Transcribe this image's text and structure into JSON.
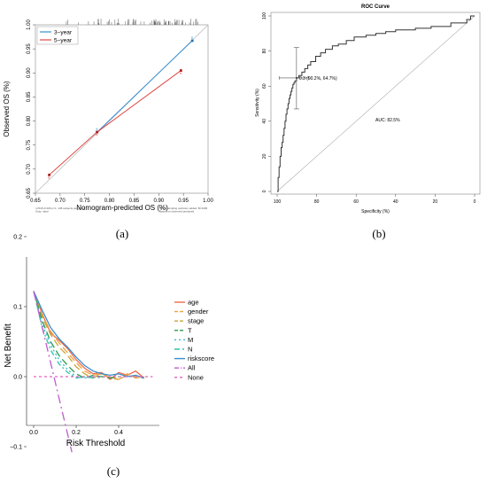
{
  "panel_labels": [
    "(a)",
    "(b)",
    "(c)"
  ],
  "chart_data": [
    {
      "type": "line",
      "panel": "a",
      "xlabel": "Nomogram-predicted OS (%)",
      "ylabel": "Observed OS (%)",
      "xlim": [
        0.65,
        1.0
      ],
      "ylim": [
        0.65,
        1.0
      ],
      "xticks": [
        "0.65",
        "0.70",
        "0.75",
        "0.80",
        "0.85",
        "0.90",
        "0.95",
        "1.00"
      ],
      "yticks": [
        "0.65",
        "0.70",
        "0.75",
        "0.80",
        "0.85",
        "0.90",
        "0.95",
        "1.00"
      ],
      "legend_position": "top-left",
      "series": [
        {
          "name": "3−year",
          "color": "#3a8fcf",
          "x": [
            0.775,
            0.968
          ],
          "y": [
            0.777,
            0.967
          ]
        },
        {
          "name": "5−year",
          "color": "#e04848",
          "x": [
            0.678,
            0.775,
            0.945
          ],
          "y": [
            0.688,
            0.777,
            0.905
          ]
        }
      ],
      "ideal_line": true,
      "rug_top": true,
      "footnote_left": "n=518 d=106 p=1, 138 subjects per group\nGray: ideal",
      "footnote_right": "X − resampling optimism added, B=1000\nBased on observed-predicted"
    },
    {
      "type": "line",
      "panel": "b",
      "title": "ROC Curve",
      "xlabel": "Specificity (%)",
      "ylabel": "Sensitivity (%)",
      "xlim": [
        100,
        0
      ],
      "ylim": [
        0,
        100
      ],
      "xticks": [
        "100",
        "80",
        "60",
        "40",
        "20",
        "0"
      ],
      "yticks": [
        "0",
        "20",
        "40",
        "60",
        "80",
        "100"
      ],
      "annotations": [
        "0.3 (90.2%, 64.7%)",
        "AUC: 82.5%"
      ],
      "series": [
        {
          "name": "ROC",
          "color": "#333333",
          "specificity": [
            100,
            99.5,
            99.5,
            99,
            99,
            98.5,
            98.5,
            98,
            98,
            97.5,
            97.5,
            97,
            97,
            96.5,
            96.5,
            96,
            96,
            95.5,
            95.5,
            95,
            95,
            94.5,
            94.5,
            94,
            94,
            93.5,
            93.5,
            93,
            93,
            92.5,
            92.5,
            92,
            92,
            91.5,
            91.5,
            91,
            91,
            90.2,
            90.2,
            89,
            89,
            87.5,
            87.5,
            86,
            86,
            84.5,
            84.5,
            83,
            83,
            80.5,
            80.5,
            78,
            78,
            75.5,
            75.5,
            72,
            72,
            69,
            69,
            65,
            65,
            61,
            61,
            55,
            55,
            50,
            50,
            45,
            45,
            40,
            40,
            30,
            30,
            22,
            22,
            12,
            12,
            4,
            4,
            2,
            2,
            0
          ],
          "sensitivity": [
            0,
            0,
            8,
            8,
            14,
            14,
            20,
            20,
            25,
            25,
            28,
            28,
            32,
            32,
            36,
            36,
            40,
            40,
            44,
            44,
            47,
            47,
            50,
            50,
            53,
            53,
            55,
            55,
            57,
            57,
            59,
            59,
            61,
            61,
            62,
            62,
            63,
            63,
            64.7,
            64.7,
            66,
            66,
            68,
            68,
            70,
            70,
            72,
            72,
            74,
            74,
            77,
            77,
            79,
            79,
            81,
            81,
            83,
            83,
            84,
            84,
            86,
            86,
            88,
            88,
            89,
            89,
            90,
            90,
            91,
            91,
            92,
            92,
            93,
            93,
            94,
            94,
            96,
            96,
            98,
            98,
            100,
            100
          ]
        }
      ],
      "threshold_point": {
        "specificity": 90.2,
        "sensitivity": 64.7,
        "ci_sensitivity": [
          47,
          82
        ],
        "ci_specificity": [
          99,
          84
        ]
      },
      "diagonal": true
    },
    {
      "type": "line",
      "panel": "c",
      "xlabel": "Risk Threshold",
      "ylabel": "Net Benefit",
      "xlim": [
        0.0,
        0.6
      ],
      "ylim": [
        -0.12,
        0.2
      ],
      "xticks": [
        "0.0",
        "0.2",
        "0.4"
      ],
      "yticks": [
        "−0.1",
        "0.0",
        "0.1",
        "0.2"
      ],
      "legend_position": "right",
      "series": [
        {
          "name": "age",
          "color": "#f06a4a",
          "dash": "solid",
          "x": [
            0.0,
            0.04,
            0.08,
            0.12,
            0.16,
            0.2,
            0.24,
            0.28,
            0.32,
            0.36,
            0.4,
            0.44,
            0.48,
            0.52
          ],
          "y": [
            0.122,
            0.09,
            0.062,
            0.052,
            0.04,
            0.024,
            0.012,
            0.004,
            0.006,
            -0.004,
            0.006,
            0.002,
            0.008,
            -0.002
          ]
        },
        {
          "name": "gender",
          "color": "#f0a33a",
          "dash": "8,4",
          "x": [
            0.0,
            0.04,
            0.08,
            0.12,
            0.16,
            0.2,
            0.24,
            0.28,
            0.32,
            0.36,
            0.4,
            0.44,
            0.48,
            0.52
          ],
          "y": [
            0.122,
            0.088,
            0.065,
            0.048,
            0.034,
            0.02,
            0.008,
            0.002,
            0.004,
            -0.002,
            -0.004,
            0.004,
            -0.002,
            0.0
          ]
        },
        {
          "name": "stage",
          "color": "#c9a43a",
          "dash": "8,4",
          "x": [
            0.0,
            0.04,
            0.08,
            0.12,
            0.16,
            0.2,
            0.24,
            0.28,
            0.32,
            0.36,
            0.4,
            0.44,
            0.48,
            0.52
          ],
          "y": [
            0.122,
            0.085,
            0.06,
            0.042,
            0.03,
            0.014,
            0.004,
            -0.002,
            0.004,
            0.0,
            -0.004,
            0.002,
            0.0,
            -0.002
          ]
        },
        {
          "name": "T",
          "color": "#2e9a4a",
          "dash": "8,4",
          "x": [
            0.0,
            0.04,
            0.08,
            0.12,
            0.16,
            0.2,
            0.24,
            0.28,
            0.32,
            0.36,
            0.4
          ],
          "y": [
            0.122,
            0.08,
            0.05,
            0.03,
            0.016,
            0.004,
            -0.002,
            0.002,
            0.0,
            -0.002,
            0.0
          ]
        },
        {
          "name": "M",
          "color": "#36b8d8",
          "dash": "2,3",
          "x": [
            0.0,
            0.04,
            0.08,
            0.12,
            0.16,
            0.2,
            0.24,
            0.28,
            0.32
          ],
          "y": [
            0.122,
            0.076,
            0.045,
            0.024,
            0.01,
            0.0,
            -0.002,
            0.0,
            -0.002
          ]
        },
        {
          "name": "N",
          "color": "#2ec4a8",
          "dash": "6,3,2,3",
          "x": [
            0.0,
            0.04,
            0.08,
            0.12,
            0.16,
            0.2,
            0.24,
            0.28
          ],
          "y": [
            0.122,
            0.07,
            0.038,
            0.018,
            0.006,
            -0.002,
            0.0,
            -0.002
          ]
        },
        {
          "name": "riskscore",
          "color": "#3a8fcf",
          "dash": "solid",
          "x": [
            0.0,
            0.04,
            0.08,
            0.12,
            0.16,
            0.2,
            0.24,
            0.28,
            0.32,
            0.36,
            0.4,
            0.44,
            0.48,
            0.52
          ],
          "y": [
            0.122,
            0.095,
            0.07,
            0.054,
            0.042,
            0.028,
            0.016,
            0.008,
            0.004,
            0.002,
            0.004,
            0.0,
            0.002,
            -0.002
          ]
        },
        {
          "name": "All",
          "color": "#c05ad0",
          "dash": "10,4,2,4",
          "x": [
            0.0,
            0.18
          ],
          "y": [
            0.122,
            -0.108
          ]
        },
        {
          "name": "None",
          "color": "#e060c0",
          "dash": "3,3",
          "x": [
            0.0,
            0.56
          ],
          "y": [
            0.0,
            0.0
          ]
        }
      ]
    }
  ]
}
